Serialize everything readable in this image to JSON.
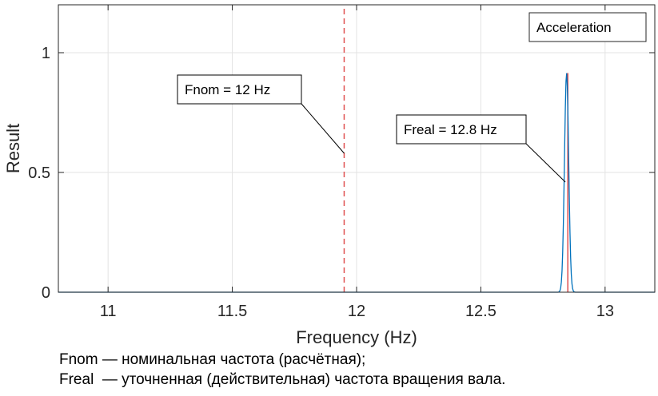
{
  "chart_data": {
    "type": "line",
    "xlabel": "Frequency (Hz)",
    "ylabel": "Result",
    "xlim": [
      10.8,
      13.2
    ],
    "ylim": [
      0,
      1.2
    ],
    "x_ticks": [
      11,
      11.5,
      12,
      12.5,
      13
    ],
    "x_tick_labels": [
      "11",
      "11.5",
      "12",
      "12.5",
      "13"
    ],
    "y_ticks": [
      0,
      0.5,
      1
    ],
    "y_tick_labels": [
      "0",
      "0.5",
      "1"
    ],
    "grid": true,
    "legend": {
      "label": "Acceleration",
      "placement": "top-right"
    },
    "series": [
      {
        "type": "line",
        "color": "#0072BD",
        "peak": {
          "x": 12.845,
          "y": 0.915,
          "width_hz": 0.02
        }
      }
    ],
    "vlines": [
      {
        "x": 11.95,
        "y_top": 1.2,
        "style": "dashed",
        "color": "#e05050"
      },
      {
        "x": 12.85,
        "y_top": 0.915,
        "style": "solid",
        "color": "#e05050"
      }
    ],
    "annotations": [
      {
        "text": "Fnom = 12 Hz",
        "target_x": 11.95,
        "target_y": 0.58
      },
      {
        "text": "Freal = 12.8 Hz",
        "target_x": 12.84,
        "target_y": 0.46
      }
    ]
  },
  "caption": {
    "line1": "Fnom — номинальная частота (расчётная);",
    "line2": "Freal  — уточненная (действительная) частота вращения вала."
  }
}
